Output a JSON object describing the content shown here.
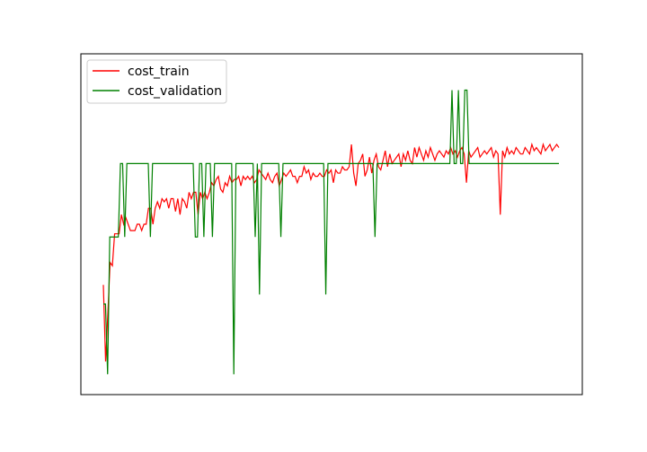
{
  "chart_data": {
    "type": "line",
    "title": "",
    "xlabel": "",
    "ylabel": "",
    "xlim": [
      0,
      200
    ],
    "ylim": [
      0,
      1
    ],
    "grid": false,
    "legend": {
      "placement": "top-left"
    },
    "series": [
      {
        "name": "cost_train",
        "color": "#ff0000",
        "values": [
          0.31,
          0.07,
          0.22,
          0.38,
          0.37,
          0.47,
          0.47,
          0.47,
          0.53,
          0.5,
          0.52,
          0.5,
          0.48,
          0.48,
          0.48,
          0.5,
          0.5,
          0.48,
          0.5,
          0.5,
          0.55,
          0.55,
          0.5,
          0.55,
          0.57,
          0.55,
          0.58,
          0.57,
          0.58,
          0.55,
          0.58,
          0.58,
          0.54,
          0.58,
          0.53,
          0.58,
          0.57,
          0.55,
          0.6,
          0.58,
          0.6,
          0.6,
          0.53,
          0.6,
          0.58,
          0.6,
          0.58,
          0.6,
          0.63,
          0.62,
          0.64,
          0.65,
          0.61,
          0.6,
          0.63,
          0.62,
          0.65,
          0.63,
          0.64,
          0.64,
          0.65,
          0.62,
          0.65,
          0.64,
          0.65,
          0.64,
          0.65,
          0.63,
          0.64,
          0.67,
          0.66,
          0.65,
          0.64,
          0.66,
          0.64,
          0.63,
          0.65,
          0.66,
          0.62,
          0.64,
          0.66,
          0.65,
          0.66,
          0.67,
          0.65,
          0.65,
          0.63,
          0.65,
          0.65,
          0.68,
          0.66,
          0.67,
          0.64,
          0.66,
          0.65,
          0.65,
          0.66,
          0.65,
          0.65,
          0.67,
          0.66,
          0.67,
          0.63,
          0.67,
          0.66,
          0.66,
          0.68,
          0.67,
          0.67,
          0.68,
          0.75,
          0.66,
          0.62,
          0.69,
          0.7,
          0.72,
          0.65,
          0.67,
          0.71,
          0.66,
          0.7,
          0.72,
          0.68,
          0.67,
          0.7,
          0.73,
          0.68,
          0.72,
          0.69,
          0.7,
          0.71,
          0.72,
          0.68,
          0.72,
          0.7,
          0.73,
          0.7,
          0.69,
          0.74,
          0.71,
          0.74,
          0.72,
          0.7,
          0.73,
          0.71,
          0.74,
          0.72,
          0.7,
          0.72,
          0.73,
          0.72,
          0.71,
          0.73,
          0.72,
          0.74,
          0.72,
          0.73,
          0.71,
          0.73,
          0.74,
          0.72,
          0.63,
          0.73,
          0.71,
          0.72,
          0.73,
          0.74,
          0.71,
          0.72,
          0.73,
          0.72,
          0.73,
          0.74,
          0.71,
          0.73,
          0.72,
          0.53,
          0.73,
          0.71,
          0.74,
          0.72,
          0.73,
          0.72,
          0.74,
          0.73,
          0.72,
          0.72,
          0.74,
          0.73,
          0.72,
          0.75,
          0.73,
          0.74,
          0.73,
          0.72,
          0.75,
          0.73,
          0.74,
          0.75,
          0.73,
          0.74,
          0.75,
          0.74
        ]
      },
      {
        "name": "cost_validation",
        "color": "#008000",
        "values": [
          0.25,
          0.25,
          0.03,
          0.46,
          0.46,
          0.46,
          0.46,
          0.46,
          0.69,
          0.69,
          0.46,
          0.69,
          0.69,
          0.69,
          0.69,
          0.69,
          0.69,
          0.69,
          0.69,
          0.69,
          0.69,
          0.69,
          0.46,
          0.69,
          0.69,
          0.69,
          0.69,
          0.69,
          0.69,
          0.69,
          0.69,
          0.69,
          0.69,
          0.69,
          0.69,
          0.69,
          0.69,
          0.69,
          0.69,
          0.69,
          0.69,
          0.69,
          0.69,
          0.46,
          0.46,
          0.69,
          0.69,
          0.46,
          0.69,
          0.69,
          0.69,
          0.46,
          0.69,
          0.69,
          0.69,
          0.69,
          0.69,
          0.69,
          0.69,
          0.69,
          0.69,
          0.03,
          0.69,
          0.69,
          0.69,
          0.69,
          0.69,
          0.69,
          0.69,
          0.69,
          0.69,
          0.46,
          0.69,
          0.28,
          0.69,
          0.69,
          0.69,
          0.69,
          0.69,
          0.69,
          0.69,
          0.69,
          0.69,
          0.46,
          0.69,
          0.69,
          0.69,
          0.69,
          0.69,
          0.69,
          0.69,
          0.69,
          0.69,
          0.69,
          0.69,
          0.69,
          0.69,
          0.69,
          0.69,
          0.69,
          0.69,
          0.69,
          0.69,
          0.69,
          0.28,
          0.69,
          0.69,
          0.69,
          0.69,
          0.69,
          0.69,
          0.69,
          0.69,
          0.69,
          0.69,
          0.69,
          0.69,
          0.69,
          0.69,
          0.69,
          0.69,
          0.69,
          0.69,
          0.69,
          0.69,
          0.69,
          0.69,
          0.46,
          0.69,
          0.69,
          0.69,
          0.69,
          0.69,
          0.69,
          0.69,
          0.69,
          0.69,
          0.69,
          0.69,
          0.69,
          0.69,
          0.69,
          0.69,
          0.69,
          0.69,
          0.69,
          0.69,
          0.69,
          0.69,
          0.69,
          0.69,
          0.69,
          0.69,
          0.69,
          0.69,
          0.69,
          0.69,
          0.69,
          0.69,
          0.69,
          0.69,
          0.69,
          0.69,
          0.92,
          0.69,
          0.69,
          0.92,
          0.69,
          0.69,
          0.92,
          0.92,
          0.69,
          0.69,
          0.69,
          0.69,
          0.69,
          0.69,
          0.69,
          0.69,
          0.69,
          0.69,
          0.69,
          0.69,
          0.69,
          0.69,
          0.69,
          0.69,
          0.69,
          0.69,
          0.69,
          0.69,
          0.69,
          0.69,
          0.69,
          0.69,
          0.69,
          0.69,
          0.69,
          0.69,
          0.69,
          0.69,
          0.69,
          0.69,
          0.69,
          0.69,
          0.69,
          0.69,
          0.69,
          0.69,
          0.69,
          0.69,
          0.69,
          0.69,
          0.69
        ]
      }
    ]
  }
}
